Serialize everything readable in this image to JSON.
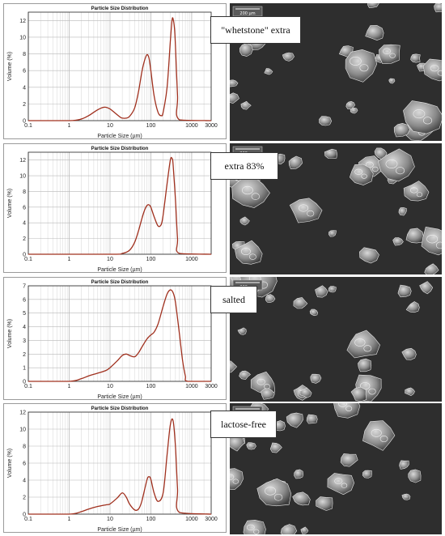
{
  "colors": {
    "curve": "#a0301e",
    "grid_minor": "#dcdcdc",
    "grid_major": "#b8b8b8",
    "axis": "#222222",
    "sem_bg": "#2e2e2e"
  },
  "chart_data": [
    {
      "type": "line",
      "title": "Particle Size Distribution",
      "xlabel": "Particle Size (µm)",
      "ylabel": "Volume (%)",
      "xscale": "log",
      "xlim": [
        0.1,
        3000
      ],
      "ylim": [
        0,
        13
      ],
      "xticks": [
        "0.1",
        "1",
        "10",
        "100",
        "1000",
        "3000"
      ],
      "yticks": [
        "0",
        "2",
        "4",
        "6",
        "8",
        "10",
        "12"
      ],
      "x": [
        0.1,
        1,
        2,
        3,
        4,
        5,
        6,
        7,
        8,
        10,
        12,
        15,
        18,
        20,
        25,
        30,
        40,
        50,
        60,
        70,
        80,
        90,
        100,
        120,
        150,
        180,
        200,
        250,
        300,
        330,
        350,
        380,
        400,
        450,
        500,
        3000
      ],
      "series": [
        {
          "values": [
            0,
            0,
            0.2,
            0.6,
            1.0,
            1.3,
            1.5,
            1.6,
            1.6,
            1.4,
            1.1,
            0.7,
            0.4,
            0.3,
            0.3,
            0.5,
            1.5,
            3.5,
            5.8,
            7.2,
            7.9,
            7.5,
            6.0,
            3.0,
            1.0,
            0.6,
            1.0,
            4.0,
            9.5,
            12.0,
            12.2,
            11.0,
            9.0,
            3.0,
            0.1,
            0
          ]
        }
      ]
    },
    {
      "type": "line",
      "title": "Particle Size Distribution",
      "xlabel": "Particle Size (µm)",
      "ylabel": "Volume (%)",
      "xscale": "log",
      "xlim": [
        0.1,
        3000
      ],
      "ylim": [
        0,
        13
      ],
      "xticks": [
        "0.1",
        "1",
        "10",
        "100",
        "1000"
      ],
      "yticks": [
        "0",
        "2",
        "4",
        "6",
        "8",
        "10",
        "12"
      ],
      "x": [
        0.1,
        10,
        20,
        30,
        40,
        50,
        60,
        70,
        80,
        90,
        100,
        120,
        150,
        180,
        200,
        250,
        300,
        330,
        350,
        400,
        450,
        500,
        3000
      ],
      "series": [
        {
          "values": [
            0,
            0,
            0.1,
            0.5,
            1.5,
            3.0,
            4.5,
            5.6,
            6.2,
            6.3,
            6.0,
            4.8,
            3.6,
            3.8,
            5.0,
            9.0,
            12.0,
            12.2,
            11.5,
            7.0,
            2.0,
            0.1,
            0
          ]
        }
      ]
    },
    {
      "type": "line",
      "title": "Particle Size Distribution",
      "xlabel": "Particle Size (µm)",
      "ylabel": "Volume (%)",
      "xscale": "log",
      "xlim": [
        0.1,
        3000
      ],
      "ylim": [
        0,
        7
      ],
      "xticks": [
        "0.1",
        "1",
        "10",
        "100",
        "1000",
        "3000"
      ],
      "yticks": [
        "0",
        "1",
        "2",
        "3",
        "4",
        "5",
        "6",
        "7"
      ],
      "x": [
        0.1,
        1,
        2,
        3,
        5,
        8,
        10,
        15,
        20,
        25,
        30,
        40,
        50,
        60,
        80,
        100,
        120,
        150,
        200,
        250,
        300,
        350,
        400,
        500,
        600,
        700,
        800,
        3000
      ],
      "series": [
        {
          "values": [
            0,
            0,
            0.2,
            0.4,
            0.6,
            0.8,
            1.0,
            1.5,
            1.9,
            2.0,
            1.9,
            1.8,
            2.1,
            2.5,
            3.1,
            3.4,
            3.6,
            4.2,
            5.5,
            6.4,
            6.7,
            6.5,
            5.8,
            3.5,
            1.5,
            0.4,
            0,
            0
          ]
        }
      ]
    },
    {
      "type": "line",
      "title": "Particle Size Distribution",
      "xlabel": "Particle Size (µm)",
      "ylabel": "Volume (%)",
      "xscale": "log",
      "xlim": [
        0.1,
        3000
      ],
      "ylim": [
        0,
        12
      ],
      "xticks": [
        "0.1",
        "1",
        "10",
        "100",
        "1000",
        "3000"
      ],
      "yticks": [
        "0",
        "2",
        "4",
        "6",
        "8",
        "10",
        "12"
      ],
      "x": [
        0.1,
        1,
        2,
        3,
        5,
        8,
        10,
        15,
        20,
        25,
        30,
        40,
        50,
        60,
        80,
        90,
        100,
        120,
        150,
        200,
        250,
        300,
        350,
        400,
        450,
        500,
        3000
      ],
      "series": [
        {
          "values": [
            0,
            0,
            0.3,
            0.6,
            0.9,
            1.1,
            1.2,
            1.9,
            2.5,
            2.0,
            1.2,
            0.5,
            0.6,
            1.5,
            4.0,
            4.4,
            4.1,
            2.5,
            1.5,
            2.5,
            7.0,
            10.5,
            11.0,
            8.0,
            3.0,
            0.2,
            0
          ]
        }
      ]
    }
  ],
  "labels": [
    "\"whetstone\" extra",
    "extra 83%",
    "salted",
    "lactose-free"
  ],
  "sem": {
    "scale_text": "200 µm"
  }
}
